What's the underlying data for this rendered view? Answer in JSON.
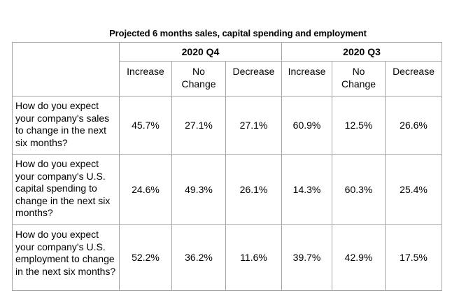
{
  "title": "Projected 6 months sales, capital spending and employment",
  "periods": [
    "2020 Q4",
    "2020 Q3"
  ],
  "columns": [
    {
      "line1": "Increase",
      "line2": ""
    },
    {
      "line1": "No",
      "line2": "Change"
    },
    {
      "line1": "Decrease",
      "line2": ""
    },
    {
      "line1": "Increase",
      "line2": ""
    },
    {
      "line1": "No",
      "line2": "Change"
    },
    {
      "line1": "Decrease",
      "line2": ""
    }
  ],
  "rows": [
    {
      "question": "How do you expect your company's sales to change in the next six months?",
      "values": [
        "45.7%",
        "27.1%",
        "27.1%",
        "60.9%",
        "12.5%",
        "26.6%"
      ]
    },
    {
      "question": "How do you expect your company's U.S. capital spending to change in the next six months?",
      "values": [
        "24.6%",
        "49.3%",
        "26.1%",
        "14.3%",
        "60.3%",
        "25.4%"
      ]
    },
    {
      "question": "How do you expect your company's U.S. employment to change in the next six months?",
      "values": [
        "52.2%",
        "36.2%",
        "11.6%",
        "39.7%",
        "42.9%",
        "17.5%"
      ]
    }
  ]
}
